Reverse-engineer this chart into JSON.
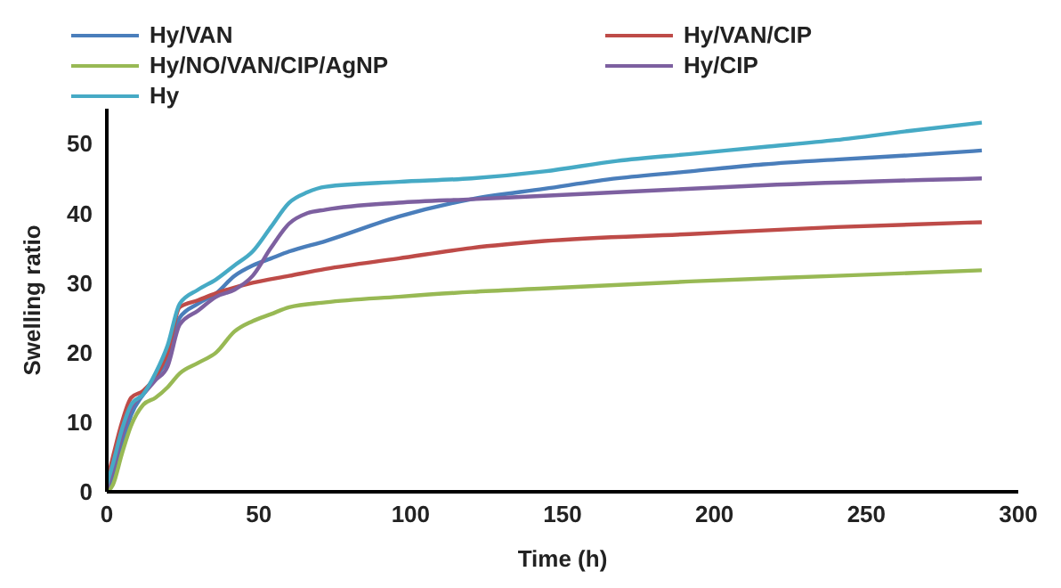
{
  "chart_data": {
    "type": "line",
    "xlabel": "Time (h)",
    "ylabel": "Swelling ratio",
    "xlim": [
      0,
      300
    ],
    "xticks": [
      0,
      50,
      100,
      150,
      200,
      250,
      300
    ],
    "ylim": [
      0,
      55
    ],
    "yticks": [
      0,
      10,
      20,
      30,
      40,
      50
    ],
    "grid": false,
    "legend": "top",
    "marker": "none",
    "line_style": "solid",
    "series": [
      {
        "name": "Hy/VAN",
        "color": "#4a7ebb",
        "x": [
          0,
          2,
          5,
          8,
          12,
          16,
          20,
          24,
          30,
          36,
          42,
          48,
          54,
          60,
          72,
          96,
          120,
          144,
          168,
          192,
          216,
          240,
          264,
          288
        ],
        "values": [
          0,
          2,
          6.5,
          11,
          14,
          16.5,
          19,
          25,
          27,
          28.5,
          31,
          32.5,
          33.5,
          34.5,
          36,
          39.5,
          42,
          43.5,
          45,
          46,
          47,
          47.7,
          48.3,
          49
        ]
      },
      {
        "name": "Hy/VAN/CIP",
        "color": "#be4b48",
        "x": [
          0,
          2,
          5,
          8,
          12,
          16,
          20,
          24,
          30,
          36,
          48,
          60,
          72,
          96,
          120,
          144,
          192,
          240,
          288
        ],
        "values": [
          1.5,
          5,
          10,
          13.5,
          14.5,
          16.5,
          20,
          26.5,
          27.5,
          28.5,
          30,
          31,
          32,
          33.5,
          35,
          36,
          37,
          38,
          38.7
        ]
      },
      {
        "name": "Hy/NO/VAN/CIP/AgNP",
        "color": "#98b954",
        "x": [
          0,
          2,
          5,
          8,
          12,
          16,
          20,
          24,
          30,
          36,
          42,
          48,
          54,
          60,
          72,
          96,
          120,
          144,
          192,
          240,
          288
        ],
        "values": [
          0,
          1,
          5.5,
          9.5,
          12.5,
          13.5,
          15,
          17,
          18.5,
          20,
          23,
          24.5,
          25.5,
          26.5,
          27.2,
          28,
          28.7,
          29.2,
          30.2,
          31,
          31.8
        ]
      },
      {
        "name": "Hy/CIP",
        "color": "#7d60a0",
        "x": [
          0,
          2,
          5,
          8,
          12,
          16,
          20,
          24,
          30,
          36,
          42,
          48,
          54,
          60,
          66,
          72,
          96,
          120,
          144,
          168,
          216,
          288
        ],
        "values": [
          0.5,
          3,
          8,
          12,
          14,
          16,
          18,
          24,
          26,
          28,
          29,
          31,
          35,
          38.5,
          40,
          40.5,
          41.5,
          42,
          42.5,
          43,
          44,
          45
        ]
      },
      {
        "name": "Hy",
        "color": "#46aac5",
        "x": [
          0,
          2,
          5,
          8,
          12,
          16,
          20,
          24,
          30,
          36,
          42,
          48,
          54,
          60,
          66,
          72,
          96,
          120,
          144,
          168,
          192,
          216,
          240,
          264,
          288
        ],
        "values": [
          1,
          4,
          9,
          12.5,
          14,
          17,
          21,
          27,
          29,
          30.5,
          32.5,
          34.5,
          38,
          41.5,
          43,
          43.8,
          44.5,
          45,
          46,
          47.5,
          48.5,
          49.5,
          50.5,
          51.8,
          53
        ]
      }
    ]
  }
}
